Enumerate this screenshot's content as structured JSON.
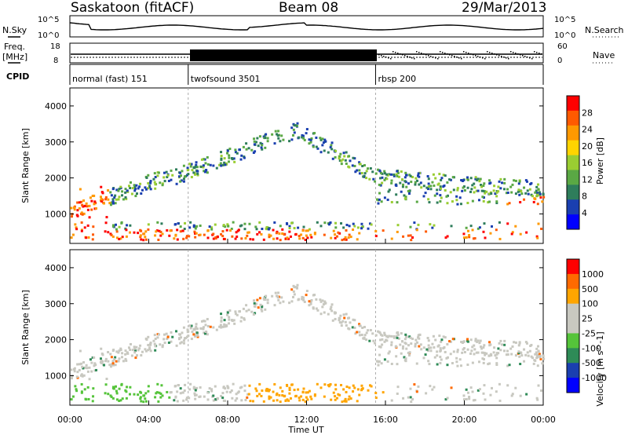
{
  "header": {
    "station": "Saskatoon (fitACF)",
    "beam": "Beam 08",
    "date": "29/Mar/2013"
  },
  "noise_panel": {
    "left_label": "N.Sky",
    "left_ticks": [
      "10^5",
      "10^0"
    ],
    "right_ticks": [
      "10^5",
      "10^0"
    ],
    "right_label": "N.Search"
  },
  "freq_panel": {
    "left_label_1": "Freq.",
    "left_label_2": "[MHz]",
    "left_ticks": [
      "18",
      "8"
    ],
    "right_ticks": [
      "60",
      "0"
    ],
    "right_label": "Nave"
  },
  "cpid": {
    "label": "CPID",
    "segments": [
      {
        "name": "normal (fast) 151",
        "start_h": 0,
        "end_h": 6
      },
      {
        "name": "twofsound 3501",
        "start_h": 6,
        "end_h": 15.5
      },
      {
        "name": "rbsp 200",
        "start_h": 15.5,
        "end_h": 24
      }
    ]
  },
  "chart_data": [
    {
      "type": "heatmap",
      "name": "power-panel",
      "ylabel": "Slant Range [km]",
      "xlabel": "",
      "yticks": [
        "1000",
        "2000",
        "3000",
        "4000"
      ],
      "ylim": [
        180,
        4500
      ],
      "xlim": [
        0,
        24
      ],
      "colorbar": {
        "label": "Power [dB]",
        "ticks": [
          "28",
          "24",
          "20",
          "16",
          "12",
          "8",
          "4"
        ],
        "colors": [
          "#0000ff",
          "#1a3fb0",
          "#2e7d5b",
          "#5aa844",
          "#9acd32",
          "#ffd400",
          "#ff9900",
          "#ff5a00",
          "#ff0000"
        ]
      }
    },
    {
      "type": "heatmap",
      "name": "velocity-panel",
      "ylabel": "Slant Range [km]",
      "xlabel": "Time UT",
      "yticks": [
        "1000",
        "2000",
        "3000",
        "4000"
      ],
      "xticks": [
        "00:00",
        "04:00",
        "08:00",
        "12:00",
        "16:00",
        "20:00",
        "00:00"
      ],
      "ylim": [
        180,
        4500
      ],
      "xlim": [
        0,
        24
      ],
      "colorbar": {
        "label": "Velocity [m s^-1]",
        "ticks": [
          "1000",
          "500",
          "100",
          "25",
          "-25",
          "-100",
          "-500",
          "-1000"
        ],
        "colors": [
          "#0000ff",
          "#1a3fb0",
          "#2e8b57",
          "#55c43a",
          "#c8c8c0",
          "#c8c8c0",
          "#ffa500",
          "#ff6a00",
          "#ff0000"
        ]
      }
    }
  ]
}
